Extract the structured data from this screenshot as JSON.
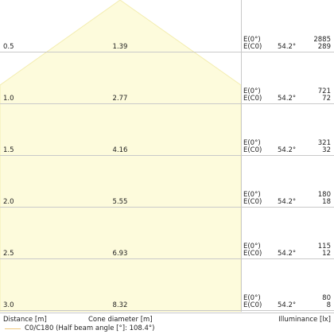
{
  "rows": [
    {
      "distance": "0.5",
      "cone_diameter": "1.39",
      "e0_label": "E(0°)",
      "ec0_label": "E(C0)",
      "angle": "54.2°",
      "e0_value": "2885",
      "ec0_value": "289"
    },
    {
      "distance": "1.0",
      "cone_diameter": "2.77",
      "e0_label": "E(0°)",
      "ec0_label": "E(C0)",
      "angle": "54.2°",
      "e0_value": "721",
      "ec0_value": "72"
    },
    {
      "distance": "1.5",
      "cone_diameter": "4.16",
      "e0_label": "E(0°)",
      "ec0_label": "E(C0)",
      "angle": "54.2°",
      "e0_value": "321",
      "ec0_value": "32"
    },
    {
      "distance": "2.0",
      "cone_diameter": "5.55",
      "e0_label": "E(0°)",
      "ec0_label": "E(C0)",
      "angle": "54.2°",
      "e0_value": "180",
      "ec0_value": "18"
    },
    {
      "distance": "2.5",
      "cone_diameter": "6.93",
      "e0_label": "E(0°)",
      "ec0_label": "E(C0)",
      "angle": "54.2°",
      "e0_value": "115",
      "ec0_value": "12"
    },
    {
      "distance": "3.0",
      "cone_diameter": "8.32",
      "e0_label": "E(0°)",
      "ec0_label": "E(C0)",
      "angle": "54.2°",
      "e0_value": "80",
      "ec0_value": "8"
    }
  ],
  "footer": {
    "distance_label": "Distance [m]",
    "cone_label": "Cone diameter [m]",
    "illuminance_label": "Illuminance [lx]"
  },
  "legend": {
    "label": "C0/C180 (Half beam angle [°]: 108.4°)"
  },
  "colors": {
    "cone_fill": "#fdfbdc",
    "cone_edge": "#f3edb0",
    "grid": "#c9c9c9",
    "legend_line": "#f0c77a"
  }
}
